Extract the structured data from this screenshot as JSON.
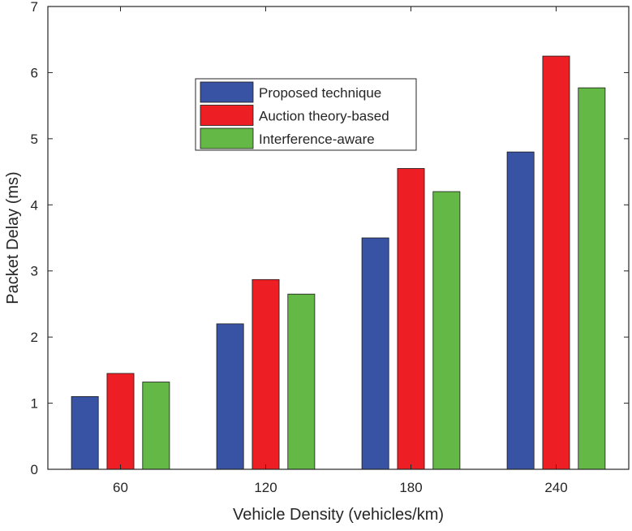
{
  "chart_data": {
    "type": "bar",
    "title": "",
    "xlabel": "Vehicle Density (vehicles/km)",
    "ylabel": "Packet Delay (ms)",
    "categories": [
      "60",
      "120",
      "180",
      "240"
    ],
    "ylim": [
      0,
      7
    ],
    "yticks": [
      "0",
      "1",
      "2",
      "3",
      "4",
      "5",
      "6",
      "7"
    ],
    "grid": false,
    "legend_position": "top-center",
    "series": [
      {
        "name": "Proposed technique",
        "color": "#3953a4",
        "values": [
          1.1,
          2.2,
          3.5,
          4.8
        ]
      },
      {
        "name": "Auction theory-based",
        "color": "#ed1f24",
        "values": [
          1.45,
          2.87,
          4.55,
          6.25
        ]
      },
      {
        "name": "Interference-aware",
        "color": "#63b846",
        "values": [
          1.32,
          2.65,
          4.2,
          5.77
        ]
      }
    ]
  }
}
